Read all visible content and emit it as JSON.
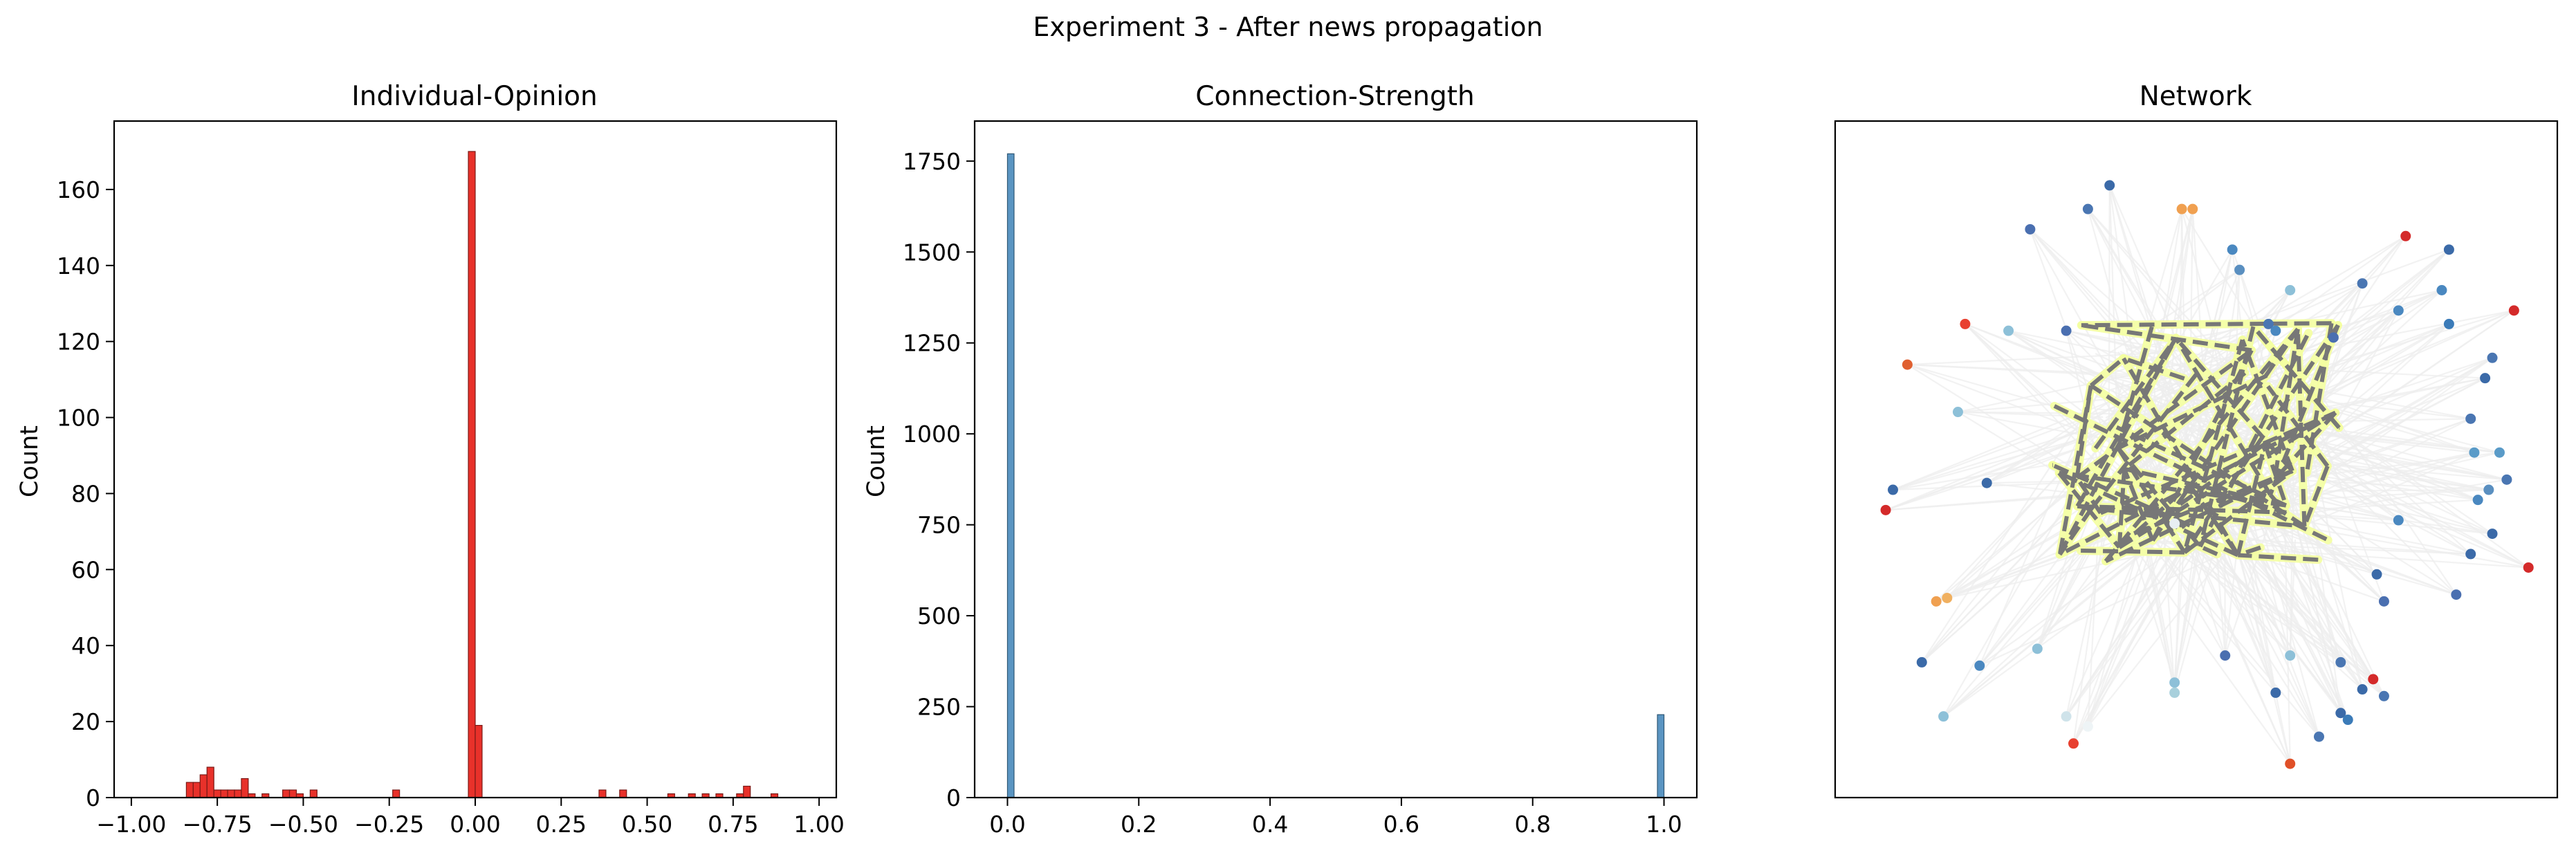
{
  "figure": {
    "title": "Experiment 3 - After news propagation"
  },
  "colors": {
    "opinion_bar": "#e8312a",
    "opinion_bar_edge": "#7a1a16",
    "strength_bar": "#5b95c2",
    "strength_bar_edge": "#2d5674",
    "network_edge": "#eeeeee",
    "news_edge": "#777777",
    "news_halo": "#f4ffa0"
  },
  "chart_data": [
    {
      "type": "bar",
      "title": "Individual-Opinion",
      "xlabel": "",
      "ylabel": "Count",
      "xlim": [
        -1.05,
        1.05
      ],
      "ylim": [
        0,
        178
      ],
      "xticks": [
        -1.0,
        -0.75,
        -0.5,
        -0.25,
        0.0,
        0.25,
        0.5,
        0.75,
        1.0
      ],
      "xtick_labels": [
        "−1.00",
        "−0.75",
        "−0.50",
        "−0.25",
        "0.00",
        "0.25",
        "0.50",
        "0.75",
        "1.00"
      ],
      "yticks": [
        0,
        20,
        40,
        60,
        80,
        100,
        120,
        140,
        160
      ],
      "ytick_labels": [
        "0",
        "20",
        "40",
        "60",
        "80",
        "100",
        "120",
        "140",
        "160"
      ],
      "bin_width": 0.02,
      "bins": [
        {
          "x": -0.83,
          "count": 4
        },
        {
          "x": -0.81,
          "count": 4
        },
        {
          "x": -0.79,
          "count": 6
        },
        {
          "x": -0.77,
          "count": 8
        },
        {
          "x": -0.75,
          "count": 2
        },
        {
          "x": -0.73,
          "count": 2
        },
        {
          "x": -0.71,
          "count": 2
        },
        {
          "x": -0.69,
          "count": 2
        },
        {
          "x": -0.67,
          "count": 5
        },
        {
          "x": -0.65,
          "count": 1
        },
        {
          "x": -0.61,
          "count": 1
        },
        {
          "x": -0.55,
          "count": 2
        },
        {
          "x": -0.53,
          "count": 2
        },
        {
          "x": -0.51,
          "count": 1
        },
        {
          "x": -0.47,
          "count": 2
        },
        {
          "x": -0.23,
          "count": 2
        },
        {
          "x": -0.01,
          "count": 170
        },
        {
          "x": 0.01,
          "count": 19
        },
        {
          "x": 0.37,
          "count": 2
        },
        {
          "x": 0.43,
          "count": 2
        },
        {
          "x": 0.57,
          "count": 1
        },
        {
          "x": 0.63,
          "count": 1
        },
        {
          "x": 0.67,
          "count": 1
        },
        {
          "x": 0.71,
          "count": 1
        },
        {
          "x": 0.77,
          "count": 1
        },
        {
          "x": 0.79,
          "count": 3
        },
        {
          "x": 0.87,
          "count": 1
        }
      ]
    },
    {
      "type": "bar",
      "title": "Connection-Strength",
      "xlabel": "",
      "ylabel": "Count",
      "xlim": [
        -0.05,
        1.05
      ],
      "ylim": [
        0,
        1860
      ],
      "xticks": [
        0.0,
        0.2,
        0.4,
        0.6,
        0.8,
        1.0
      ],
      "xtick_labels": [
        "0.0",
        "0.2",
        "0.4",
        "0.6",
        "0.8",
        "1.0"
      ],
      "yticks": [
        0,
        250,
        500,
        750,
        1000,
        1250,
        1500,
        1750
      ],
      "ytick_labels": [
        "0",
        "250",
        "500",
        "750",
        "1000",
        "1250",
        "1500",
        "1750"
      ],
      "bin_width": 0.01,
      "bins": [
        {
          "x": 0.005,
          "count": 1770
        },
        {
          "x": 0.995,
          "count": 228
        }
      ]
    },
    {
      "type": "network",
      "title": "Network",
      "nodes": [
        {
          "x": 0.38,
          "y": 0.095,
          "c": "#3b6aa8"
        },
        {
          "x": 0.35,
          "y": 0.13,
          "c": "#4a76b2"
        },
        {
          "x": 0.48,
          "y": 0.13,
          "c": "#f0a050"
        },
        {
          "x": 0.495,
          "y": 0.13,
          "c": "#f0a050"
        },
        {
          "x": 0.27,
          "y": 0.16,
          "c": "#4a6fb0"
        },
        {
          "x": 0.55,
          "y": 0.19,
          "c": "#4a88c0"
        },
        {
          "x": 0.73,
          "y": 0.24,
          "c": "#4a76b2"
        },
        {
          "x": 0.79,
          "y": 0.17,
          "c": "#d42a2a"
        },
        {
          "x": 0.85,
          "y": 0.19,
          "c": "#3b6aa8"
        },
        {
          "x": 0.56,
          "y": 0.22,
          "c": "#5a8fc0"
        },
        {
          "x": 0.6,
          "y": 0.3,
          "c": "#4a76b2"
        },
        {
          "x": 0.63,
          "y": 0.25,
          "c": "#8dc0d8"
        },
        {
          "x": 0.84,
          "y": 0.25,
          "c": "#4a88c0"
        },
        {
          "x": 0.85,
          "y": 0.3,
          "c": "#3b7bb8"
        },
        {
          "x": 0.91,
          "y": 0.35,
          "c": "#4a76b2"
        },
        {
          "x": 0.9,
          "y": 0.38,
          "c": "#3b6aa8"
        },
        {
          "x": 0.1,
          "y": 0.36,
          "c": "#e06030"
        },
        {
          "x": 0.18,
          "y": 0.3,
          "c": "#e84030"
        },
        {
          "x": 0.24,
          "y": 0.31,
          "c": "#8dc0d8"
        },
        {
          "x": 0.32,
          "y": 0.31,
          "c": "#4a6fb0"
        },
        {
          "x": 0.61,
          "y": 0.31,
          "c": "#4a88c0"
        },
        {
          "x": 0.78,
          "y": 0.28,
          "c": "#4a88c0"
        },
        {
          "x": 0.94,
          "y": 0.28,
          "c": "#d42a2a"
        },
        {
          "x": 0.69,
          "y": 0.32,
          "c": "#4a6fb0"
        },
        {
          "x": 0.88,
          "y": 0.44,
          "c": "#4a76b2"
        },
        {
          "x": 0.17,
          "y": 0.43,
          "c": "#8dc0d8"
        },
        {
          "x": 0.08,
          "y": 0.545,
          "c": "#3b6aa8"
        },
        {
          "x": 0.21,
          "y": 0.535,
          "c": "#3b6aa8"
        },
        {
          "x": 0.885,
          "y": 0.49,
          "c": "#5a9bc8"
        },
        {
          "x": 0.92,
          "y": 0.49,
          "c": "#5a9bc8"
        },
        {
          "x": 0.93,
          "y": 0.53,
          "c": "#4a76b2"
        },
        {
          "x": 0.905,
          "y": 0.545,
          "c": "#5a8fc0"
        },
        {
          "x": 0.89,
          "y": 0.56,
          "c": "#4a88c0"
        },
        {
          "x": 0.07,
          "y": 0.575,
          "c": "#d42a2a"
        },
        {
          "x": 0.78,
          "y": 0.59,
          "c": "#4a88c0"
        },
        {
          "x": 0.91,
          "y": 0.61,
          "c": "#3b6aa8"
        },
        {
          "x": 0.75,
          "y": 0.67,
          "c": "#3b6aa8"
        },
        {
          "x": 0.88,
          "y": 0.64,
          "c": "#3b6aa8"
        },
        {
          "x": 0.96,
          "y": 0.66,
          "c": "#d42a2a"
        },
        {
          "x": 0.47,
          "y": 0.595,
          "c": "#e8eef2"
        },
        {
          "x": 0.14,
          "y": 0.71,
          "c": "#f0a050"
        },
        {
          "x": 0.155,
          "y": 0.705,
          "c": "#f0b060"
        },
        {
          "x": 0.86,
          "y": 0.7,
          "c": "#4a6fb0"
        },
        {
          "x": 0.76,
          "y": 0.71,
          "c": "#4a6fb0"
        },
        {
          "x": 0.28,
          "y": 0.78,
          "c": "#8dc0d8"
        },
        {
          "x": 0.12,
          "y": 0.8,
          "c": "#3b6aa8"
        },
        {
          "x": 0.2,
          "y": 0.805,
          "c": "#4a88c0"
        },
        {
          "x": 0.54,
          "y": 0.79,
          "c": "#4a6fb0"
        },
        {
          "x": 0.63,
          "y": 0.79,
          "c": "#8dc0d8"
        },
        {
          "x": 0.7,
          "y": 0.8,
          "c": "#4a76b2"
        },
        {
          "x": 0.47,
          "y": 0.83,
          "c": "#8dc0d8"
        },
        {
          "x": 0.47,
          "y": 0.845,
          "c": "#a8d0dc"
        },
        {
          "x": 0.61,
          "y": 0.845,
          "c": "#3b6aa8"
        },
        {
          "x": 0.73,
          "y": 0.84,
          "c": "#3b6aa8"
        },
        {
          "x": 0.745,
          "y": 0.825,
          "c": "#d42a2a"
        },
        {
          "x": 0.76,
          "y": 0.85,
          "c": "#4a76b2"
        },
        {
          "x": 0.15,
          "y": 0.88,
          "c": "#8dc0d8"
        },
        {
          "x": 0.32,
          "y": 0.88,
          "c": "#cfe3ea"
        },
        {
          "x": 0.35,
          "y": 0.895,
          "c": "#eef4f6"
        },
        {
          "x": 0.7,
          "y": 0.875,
          "c": "#3b6aa8"
        },
        {
          "x": 0.71,
          "y": 0.885,
          "c": "#3b7bb8"
        },
        {
          "x": 0.67,
          "y": 0.91,
          "c": "#4a76b2"
        },
        {
          "x": 0.33,
          "y": 0.92,
          "c": "#e84030"
        },
        {
          "x": 0.63,
          "y": 0.95,
          "c": "#e05028"
        }
      ]
    }
  ]
}
